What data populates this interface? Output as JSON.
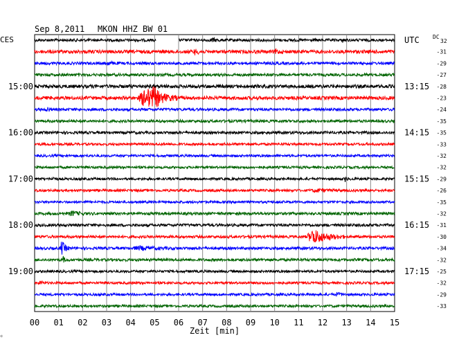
{
  "header": {
    "date": "Sep 8,2011",
    "station": "MKON HHZ BW 01",
    "left_tz": "CES",
    "right_tz": "UTC",
    "dc_label": "DC",
    "dc_top": "32"
  },
  "chart_data": {
    "type": "line",
    "title": "Sep 8,2011   MKON HHZ BW 01",
    "xlabel": "Zeit [min]",
    "xlim": [
      0,
      15
    ],
    "x_ticks": [
      "00",
      "01",
      "02",
      "03",
      "04",
      "05",
      "06",
      "07",
      "08",
      "09",
      "10",
      "11",
      "12",
      "13",
      "14",
      "15"
    ],
    "grid": true,
    "colors": [
      "#000000",
      "#ff0000",
      "#0000ff",
      "#006400"
    ],
    "left_time_labels": [
      {
        "row": 4,
        "text": "15:00"
      },
      {
        "row": 8,
        "text": "16:00"
      },
      {
        "row": 12,
        "text": "17:00"
      },
      {
        "row": 16,
        "text": "18:00"
      },
      {
        "row": 20,
        "text": "19:00"
      }
    ],
    "right_time_labels": [
      {
        "row": 0,
        "text": "UTC"
      },
      {
        "row": 4,
        "text": "13:15"
      },
      {
        "row": 8,
        "text": "14:15"
      },
      {
        "row": 12,
        "text": "15:15"
      },
      {
        "row": 16,
        "text": "16:15"
      },
      {
        "row": 20,
        "text": "17:15"
      }
    ],
    "dc_offsets": [
      "",
      "-31",
      "-29",
      "-27",
      "-28",
      "-23",
      "-24",
      "-35",
      "-35",
      "-33",
      "-32",
      "-32",
      "-29",
      "-26",
      "-35",
      "-32",
      "-31",
      "-30",
      "-34",
      "-32",
      "-25",
      "-32",
      "-29",
      "-33"
    ],
    "traces": [
      {
        "color": "#000000",
        "amp": 2.0,
        "events": [
          {
            "x": 7.3,
            "w": 0.5,
            "a": 2
          },
          {
            "x": 12.8,
            "w": 0.2,
            "a": 2
          }
        ],
        "gap": [
          5.05,
          6.0
        ]
      },
      {
        "color": "#ff0000",
        "amp": 2.5,
        "events": [
          {
            "x": 6.6,
            "w": 0.4,
            "a": 3
          },
          {
            "x": 10.0,
            "w": 0.3,
            "a": 3
          }
        ]
      },
      {
        "color": "#0000ff",
        "amp": 2.0,
        "events": [
          {
            "x": 2.9,
            "w": 0.6,
            "a": 2
          }
        ]
      },
      {
        "color": "#006400",
        "amp": 2.0,
        "events": []
      },
      {
        "color": "#000000",
        "amp": 2.5,
        "events": []
      },
      {
        "color": "#ff0000",
        "amp": 2.5,
        "events": [
          {
            "x": 4.3,
            "w": 1.7,
            "a": 14
          },
          {
            "x": 4.85,
            "w": 0.6,
            "a": 8
          }
        ]
      },
      {
        "color": "#0000ff",
        "amp": 2.0,
        "events": [
          {
            "x": 0.5,
            "w": 0.2,
            "a": 4
          }
        ]
      },
      {
        "color": "#006400",
        "amp": 2.0,
        "events": []
      },
      {
        "color": "#000000",
        "amp": 2.0,
        "events": []
      },
      {
        "color": "#ff0000",
        "amp": 1.8,
        "events": []
      },
      {
        "color": "#0000ff",
        "amp": 1.8,
        "events": []
      },
      {
        "color": "#006400",
        "amp": 1.8,
        "events": []
      },
      {
        "color": "#000000",
        "amp": 1.8,
        "events": [
          {
            "x": 0.7,
            "w": 0.2,
            "a": 3
          },
          {
            "x": 12.9,
            "w": 0.2,
            "a": 3
          }
        ]
      },
      {
        "color": "#ff0000",
        "amp": 1.8,
        "events": [
          {
            "x": 11.5,
            "w": 1.2,
            "a": 2
          }
        ]
      },
      {
        "color": "#0000ff",
        "amp": 1.8,
        "events": []
      },
      {
        "color": "#006400",
        "amp": 2.0,
        "events": [
          {
            "x": 1.4,
            "w": 0.8,
            "a": 3
          }
        ]
      },
      {
        "color": "#000000",
        "amp": 2.0,
        "events": []
      },
      {
        "color": "#ff0000",
        "amp": 2.0,
        "events": [
          {
            "x": 11.3,
            "w": 1.6,
            "a": 10
          }
        ]
      },
      {
        "color": "#0000ff",
        "amp": 2.0,
        "events": [
          {
            "x": 1.05,
            "w": 0.4,
            "a": 10
          },
          {
            "x": 4.0,
            "w": 2.0,
            "a": 2
          }
        ]
      },
      {
        "color": "#006400",
        "amp": 2.0,
        "events": [
          {
            "x": 1.15,
            "w": 0.2,
            "a": 4
          }
        ]
      },
      {
        "color": "#000000",
        "amp": 1.8,
        "events": []
      },
      {
        "color": "#ff0000",
        "amp": 1.8,
        "events": [
          {
            "x": 0.2,
            "w": 0.2,
            "a": 3
          }
        ]
      },
      {
        "color": "#0000ff",
        "amp": 1.8,
        "events": [
          {
            "x": 12.5,
            "w": 0.5,
            "a": 2
          }
        ]
      },
      {
        "color": "#006400",
        "amp": 1.8,
        "events": []
      }
    ]
  }
}
